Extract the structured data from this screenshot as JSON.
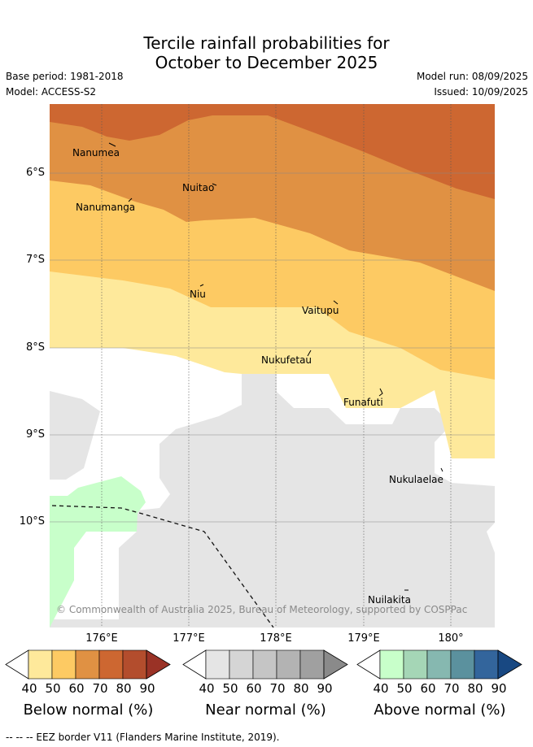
{
  "title": {
    "line1": "Tercile rainfall probabilities for",
    "line2": "October to December 2025"
  },
  "meta": {
    "base_period": "Base period: 1981-2018",
    "model": "Model: ACCESS-S2",
    "model_run": "Model run: 08/09/2025",
    "issued": "Issued: 10/09/2025"
  },
  "map": {
    "lat_labels": [
      "6°S",
      "7°S",
      "8°S",
      "9°S",
      "10°S"
    ],
    "lon_labels": [
      "176°E",
      "177°E",
      "178°E",
      "179°E",
      "180°"
    ],
    "places": [
      "Nanumea",
      "Nuitao",
      "Nanumanga",
      "Niu",
      "Vaitupu",
      "Nukufetau",
      "Funafuti",
      "Nukulaelae",
      "Nuilakita"
    ],
    "credit": "© Commonwealth of Australia 2025, Bureau of Meteorology, supported by COSPPac",
    "colors": {
      "below_40": "#fee99b",
      "below_50": "#fdca63",
      "below_60": "#e09143",
      "below_70": "#cd6731",
      "land_mask": "#e5e5e5",
      "above_40": "#c8ffca"
    }
  },
  "colorbars": [
    {
      "title": "Below normal (%)",
      "ticks": [
        "40",
        "50",
        "60",
        "70",
        "80",
        "90"
      ],
      "colors": [
        "#fee99b",
        "#fdca63",
        "#e09143",
        "#cd6731",
        "#b34d2d",
        "#9a3226"
      ]
    },
    {
      "title": "Near normal (%)",
      "ticks": [
        "40",
        "50",
        "60",
        "70",
        "80",
        "90"
      ],
      "colors": [
        "#e5e5e5",
        "#d5d5d5",
        "#c5c5c5",
        "#b3b3b3",
        "#a0a0a0",
        "#8a8a8a"
      ]
    },
    {
      "title": "Above normal (%)",
      "ticks": [
        "40",
        "50",
        "60",
        "70",
        "80",
        "90"
      ],
      "colors": [
        "#c8ffca",
        "#a5d6b6",
        "#86b8b0",
        "#5b919e",
        "#33659c",
        "#184882"
      ]
    }
  ],
  "footer": "-- -- -- EEZ border V11 (Flanders Marine Institute, 2019)."
}
